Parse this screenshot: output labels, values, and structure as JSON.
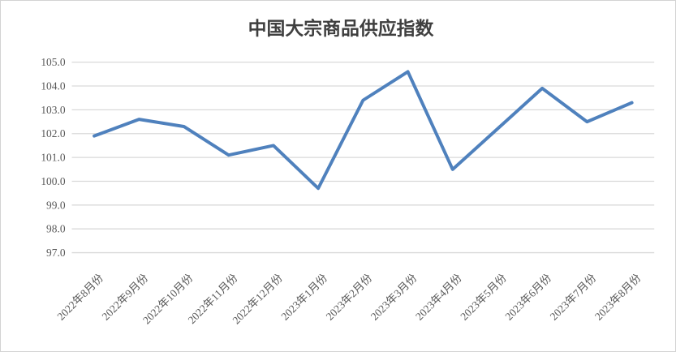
{
  "page": {
    "background": "#ffffff",
    "border_color": "#d3d3d3"
  },
  "chart_data": {
    "type": "line",
    "title": "中国大宗商品供应指数",
    "categories": [
      "2022年8月份",
      "2022年9月份",
      "2022年10月份",
      "2022年11月份",
      "2022年12月份",
      "2023年1月份",
      "2023年2月份",
      "2023年3月份",
      "2023年4月份",
      "2023年5月份",
      "2023年6月份",
      "2023年7月份",
      "2023年8月份"
    ],
    "values": [
      101.9,
      102.6,
      102.3,
      101.1,
      101.5,
      99.7,
      103.4,
      104.6,
      100.5,
      102.2,
      103.9,
      102.5,
      103.3
    ],
    "xlabel": "",
    "ylabel": "",
    "ylim": [
      97.0,
      105.0
    ],
    "ytick_step": 1.0,
    "ytick_labels": [
      "105.0",
      "104.0",
      "103.0",
      "102.0",
      "101.0",
      "100.0",
      "99.0",
      "98.0",
      "97.0"
    ],
    "grid": true,
    "legend": false,
    "x_label_rotation_deg": 45,
    "line_color": "#4f81bd",
    "line_width": 4,
    "gridline_color": "#d9d9d9",
    "label_color": "#595959",
    "title_color": "#3f3f3f"
  }
}
